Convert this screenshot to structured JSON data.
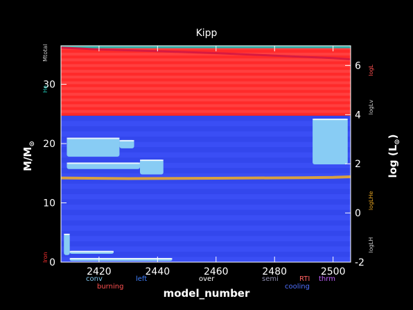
{
  "chart_data": {
    "type": "area",
    "title": "Kipp",
    "xlabel": "model_number",
    "ylabel": "M/M",
    "ylabel_sub": "⊙",
    "y2label": "log (L",
    "y2label_sub": "⊙",
    "y2label_close": ")",
    "xlim": [
      2407,
      2506
    ],
    "ylim": [
      0,
      36.5
    ],
    "y2lim": [
      -2,
      6.8
    ],
    "xticks": [
      2420,
      2440,
      2460,
      2480,
      2500
    ],
    "yticks": [
      0,
      10,
      20,
      30
    ],
    "y2ticks": [
      -2,
      0,
      2,
      4,
      6
    ],
    "regions": {
      "blue_zone": {
        "from": 0,
        "to": 24.7,
        "color": "#3a4ef5"
      },
      "red_zone": {
        "from": 24.7,
        "to": 36.3,
        "color": "#ff2a2a"
      },
      "dark_cap": {
        "from": 36.3,
        "to": 37.0,
        "color": "#181830"
      }
    },
    "series": [
      {
        "name": "log_L",
        "color": "#d81a40",
        "x": [
          2407,
          2420,
          2440,
          2460,
          2480,
          2500,
          2506
        ],
        "y2": [
          6.72,
          6.65,
          6.58,
          6.5,
          6.4,
          6.3,
          6.25
        ]
      },
      {
        "name": "he_core",
        "color": "#d8a040",
        "x": [
          2407,
          2430,
          2460,
          2490,
          2500,
          2506
        ],
        "y": [
          14.2,
          14.1,
          14.15,
          14.25,
          14.3,
          14.4
        ]
      }
    ],
    "conv_blobs": [
      {
        "x0": 2409,
        "x1": 2427,
        "y0": 17.8,
        "y1": 21.0
      },
      {
        "x0": 2409,
        "x1": 2434,
        "y0": 15.7,
        "y1": 16.8
      },
      {
        "x0": 2434,
        "x1": 2442,
        "y0": 14.8,
        "y1": 17.3
      },
      {
        "x0": 2427,
        "x1": 2432,
        "y0": 19.2,
        "y1": 20.6
      },
      {
        "x0": 2493,
        "x1": 2505,
        "y0": 16.5,
        "y1": 24.2
      },
      {
        "x0": 2408,
        "x1": 2410,
        "y0": 1.2,
        "y1": 4.8
      },
      {
        "x0": 2410,
        "x1": 2425,
        "y0": 1.4,
        "y1": 1.9
      },
      {
        "x0": 2410,
        "x1": 2445,
        "y0": 0.2,
        "y1": 0.7
      }
    ],
    "left_labels": [
      {
        "text": "Mtotal",
        "color": "#cccccc",
        "y": 35.3
      },
      {
        "text": "He",
        "color": "#20c0b0",
        "y": 29.2
      },
      {
        "text": "Iron",
        "color": "#ff3030",
        "y": 0.8
      }
    ],
    "right_labels": [
      {
        "text": "logL",
        "color": "#ff5050",
        "y2": 5.8
      },
      {
        "text": "logLv",
        "color": "#cccccc",
        "y2": 4.3
      },
      {
        "text": "logLHe",
        "color": "#e0a020",
        "y2": 0.5
      },
      {
        "text": "logLH",
        "color": "#cccccc",
        "y2": -1.3
      }
    ],
    "legend_row1": [
      {
        "text": "conv",
        "color": "#80c8f0"
      },
      {
        "text": "left",
        "color": "#4080ff"
      },
      {
        "text": "over",
        "color": "#ffffff"
      },
      {
        "text": "semi",
        "color": "#9090b0"
      },
      {
        "text": "RTI",
        "color": "#ff6060"
      },
      {
        "text": "thrm",
        "color": "#c060ff"
      }
    ],
    "legend_row2": [
      {
        "text": "burning",
        "color": "#ff5050"
      },
      {
        "text": "cooling",
        "color": "#5070ff"
      }
    ]
  }
}
